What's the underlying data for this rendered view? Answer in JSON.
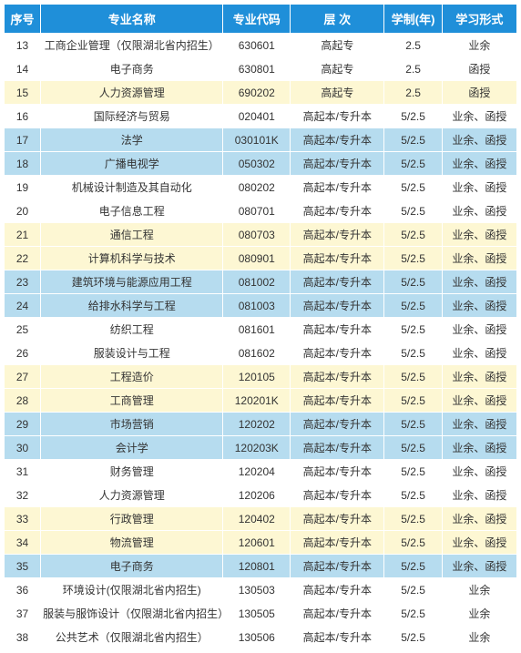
{
  "colors": {
    "header_bg": "#1f8fd9",
    "band_blue": "#b6dcef",
    "band_yellow": "#fdf7d3",
    "band_white": "#ffffff",
    "border": "#ffffff",
    "text": "#333333",
    "header_text": "#ffffff"
  },
  "columns": [
    {
      "key": "seq",
      "label": "序号"
    },
    {
      "key": "name",
      "label": "专业名称"
    },
    {
      "key": "code",
      "label": "专业代码"
    },
    {
      "key": "level",
      "label": "层 次"
    },
    {
      "key": "years",
      "label": "学制(年)"
    },
    {
      "key": "form",
      "label": "学习形式"
    }
  ],
  "rows": [
    {
      "band": "white",
      "seq": "13",
      "name": "工商企业管理（仅限湖北省内招生）",
      "code": "630601",
      "level": "高起专",
      "years": "2.5",
      "form": "业余"
    },
    {
      "band": "white",
      "seq": "14",
      "name": "电子商务",
      "code": "630801",
      "level": "高起专",
      "years": "2.5",
      "form": "函授"
    },
    {
      "band": "yellow",
      "seq": "15",
      "name": "人力资源管理",
      "code": "690202",
      "level": "高起专",
      "years": "2.5",
      "form": "函授"
    },
    {
      "band": "white",
      "seq": "16",
      "name": "国际经济与贸易",
      "code": "020401",
      "level": "高起本/专升本",
      "years": "5/2.5",
      "form": "业余、函授"
    },
    {
      "band": "blue",
      "seq": "17",
      "name": "法学",
      "code": "030101K",
      "level": "高起本/专升本",
      "years": "5/2.5",
      "form": "业余、函授"
    },
    {
      "band": "blue",
      "seq": "18",
      "name": "广播电视学",
      "code": "050302",
      "level": "高起本/专升本",
      "years": "5/2.5",
      "form": "业余、函授"
    },
    {
      "band": "white",
      "seq": "19",
      "name": "机械设计制造及其自动化",
      "code": "080202",
      "level": "高起本/专升本",
      "years": "5/2.5",
      "form": "业余、函授"
    },
    {
      "band": "white",
      "seq": "20",
      "name": "电子信息工程",
      "code": "080701",
      "level": "高起本/专升本",
      "years": "5/2.5",
      "form": "业余、函授"
    },
    {
      "band": "yellow",
      "seq": "21",
      "name": "通信工程",
      "code": "080703",
      "level": "高起本/专升本",
      "years": "5/2.5",
      "form": "业余、函授"
    },
    {
      "band": "yellow",
      "seq": "22",
      "name": "计算机科学与技术",
      "code": "080901",
      "level": "高起本/专升本",
      "years": "5/2.5",
      "form": "业余、函授"
    },
    {
      "band": "blue",
      "seq": "23",
      "name": "建筑环境与能源应用工程",
      "code": "081002",
      "level": "高起本/专升本",
      "years": "5/2.5",
      "form": "业余、函授"
    },
    {
      "band": "blue",
      "seq": "24",
      "name": "给排水科学与工程",
      "code": "081003",
      "level": "高起本/专升本",
      "years": "5/2.5",
      "form": "业余、函授"
    },
    {
      "band": "white",
      "seq": "25",
      "name": "纺织工程",
      "code": "081601",
      "level": "高起本/专升本",
      "years": "5/2.5",
      "form": "业余、函授"
    },
    {
      "band": "white",
      "seq": "26",
      "name": "服装设计与工程",
      "code": "081602",
      "level": "高起本/专升本",
      "years": "5/2.5",
      "form": "业余、函授"
    },
    {
      "band": "yellow",
      "seq": "27",
      "name": "工程造价",
      "code": "120105",
      "level": "高起本/专升本",
      "years": "5/2.5",
      "form": "业余、函授"
    },
    {
      "band": "yellow",
      "seq": "28",
      "name": "工商管理",
      "code": "120201K",
      "level": "高起本/专升本",
      "years": "5/2.5",
      "form": "业余、函授"
    },
    {
      "band": "blue",
      "seq": "29",
      "name": "市场营销",
      "code": "120202",
      "level": "高起本/专升本",
      "years": "5/2.5",
      "form": "业余、函授"
    },
    {
      "band": "blue",
      "seq": "30",
      "name": "会计学",
      "code": "120203K",
      "level": "高起本/专升本",
      "years": "5/2.5",
      "form": "业余、函授"
    },
    {
      "band": "white",
      "seq": "31",
      "name": "财务管理",
      "code": "120204",
      "level": "高起本/专升本",
      "years": "5/2.5",
      "form": "业余、函授"
    },
    {
      "band": "white",
      "seq": "32",
      "name": "人力资源管理",
      "code": "120206",
      "level": "高起本/专升本",
      "years": "5/2.5",
      "form": "业余、函授"
    },
    {
      "band": "yellow",
      "seq": "33",
      "name": "行政管理",
      "code": "120402",
      "level": "高起本/专升本",
      "years": "5/2.5",
      "form": "业余、函授"
    },
    {
      "band": "yellow",
      "seq": "34",
      "name": "物流管理",
      "code": "120601",
      "level": "高起本/专升本",
      "years": "5/2.5",
      "form": "业余、函授"
    },
    {
      "band": "blue",
      "seq": "35",
      "name": "电子商务",
      "code": "120801",
      "level": "高起本/专升本",
      "years": "5/2.5",
      "form": "业余、函授"
    },
    {
      "band": "white",
      "seq": "36",
      "name": "环境设计(仅限湖北省内招生)",
      "code": "130503",
      "level": "高起本/专升本",
      "years": "5/2.5",
      "form": "业余"
    },
    {
      "band": "white",
      "seq": "37",
      "name": "服装与服饰设计（仅限湖北省内招生）",
      "code": "130505",
      "level": "高起本/专升本",
      "years": "5/2.5",
      "form": "业余"
    },
    {
      "band": "white",
      "seq": "38",
      "name": "公共艺术（仅限湖北省内招生）",
      "code": "130506",
      "level": "高起本/专升本",
      "years": "5/2.5",
      "form": "业余"
    }
  ]
}
